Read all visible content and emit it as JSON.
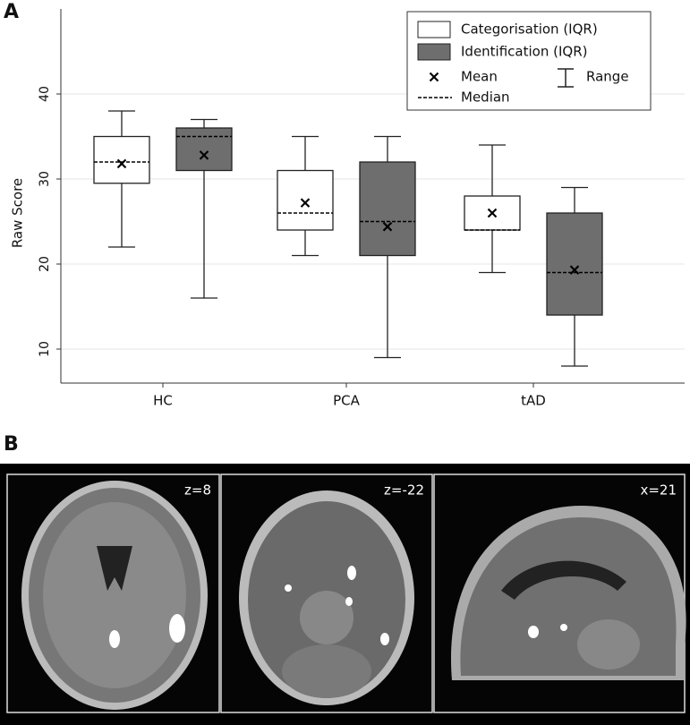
{
  "panel_a": {
    "label": "A",
    "chart_data": {
      "type": "box",
      "ylabel": "Raw Score",
      "categories": [
        "HC",
        "PCA",
        "tAD"
      ],
      "ylim": [
        6,
        50
      ],
      "yticks": [
        10,
        20,
        30,
        40
      ],
      "grid": true,
      "legend": "upper right",
      "series": [
        {
          "name": "Categorisation (IQR)",
          "color": "#ffffff",
          "min": [
            22,
            21,
            19
          ],
          "q1": [
            29.5,
            24,
            24
          ],
          "median": [
            32,
            26,
            24
          ],
          "q3": [
            35,
            31,
            28
          ],
          "max": [
            38,
            35,
            34
          ],
          "mean": [
            31.8,
            27.2,
            26
          ]
        },
        {
          "name": "Identification (IQR)",
          "color": "#6e6e6e",
          "min": [
            16,
            9,
            8
          ],
          "q1": [
            31,
            21,
            14
          ],
          "median": [
            35,
            25,
            19
          ],
          "q3": [
            36,
            32,
            26
          ],
          "max": [
            37,
            35,
            29
          ],
          "mean": [
            32.8,
            24.4,
            19.3
          ]
        }
      ],
      "legend_extra": {
        "mean": "Mean",
        "range": "Range",
        "median": "Median"
      }
    }
  },
  "panel_b": {
    "label": "B",
    "slices": [
      "z=8",
      "z=-22",
      "x=21"
    ]
  }
}
